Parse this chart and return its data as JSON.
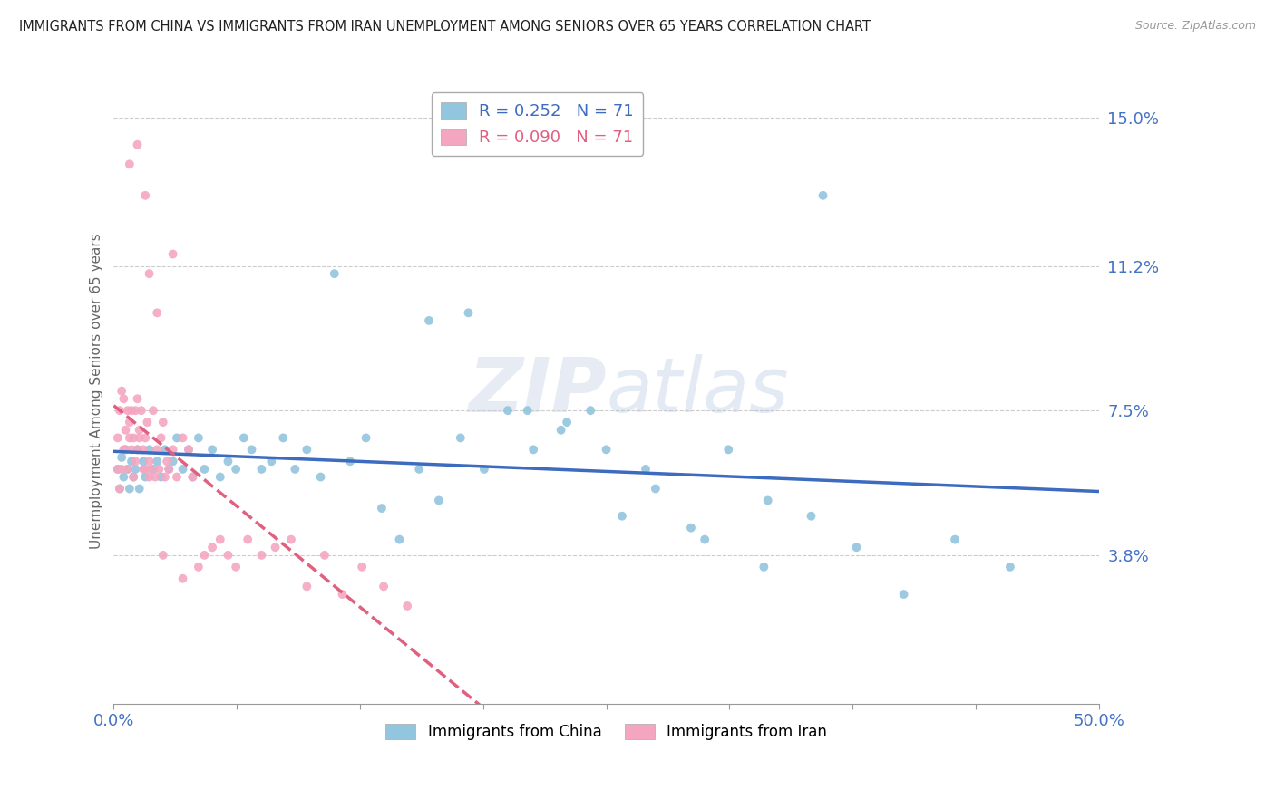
{
  "title": "IMMIGRANTS FROM CHINA VS IMMIGRANTS FROM IRAN UNEMPLOYMENT AMONG SENIORS OVER 65 YEARS CORRELATION CHART",
  "source": "Source: ZipAtlas.com",
  "ylabel": "Unemployment Among Seniors over 65 years",
  "xlim": [
    0,
    0.5
  ],
  "ylim": [
    0,
    0.16
  ],
  "yticks": [
    0.038,
    0.075,
    0.112,
    0.15
  ],
  "ytick_labels": [
    "3.8%",
    "7.5%",
    "11.2%",
    "15.0%"
  ],
  "xticks": [
    0.0,
    0.0625,
    0.125,
    0.1875,
    0.25,
    0.3125,
    0.375,
    0.4375,
    0.5
  ],
  "xtick_labels": [
    "0.0%",
    "",
    "",
    "",
    "",
    "",
    "",
    "",
    "50.0%"
  ],
  "legend_R_china": "R = 0.252",
  "legend_N_china": "N = 71",
  "legend_R_iran": "R = 0.090",
  "legend_N_iran": "N = 71",
  "color_china": "#92c5de",
  "color_iran": "#f4a6c0",
  "color_trendline_china": "#3c6bbf",
  "color_trendline_iran": "#e06080",
  "background_color": "#ffffff",
  "china_x": [
    0.002,
    0.003,
    0.004,
    0.005,
    0.006,
    0.007,
    0.008,
    0.009,
    0.01,
    0.011,
    0.012,
    0.013,
    0.015,
    0.016,
    0.018,
    0.02,
    0.022,
    0.024,
    0.026,
    0.028,
    0.03,
    0.032,
    0.035,
    0.038,
    0.04,
    0.043,
    0.046,
    0.05,
    0.054,
    0.058,
    0.062,
    0.066,
    0.07,
    0.075,
    0.08,
    0.086,
    0.092,
    0.098,
    0.105,
    0.112,
    0.12,
    0.128,
    0.136,
    0.145,
    0.155,
    0.165,
    0.176,
    0.188,
    0.2,
    0.213,
    0.227,
    0.242,
    0.258,
    0.275,
    0.293,
    0.312,
    0.332,
    0.354,
    0.377,
    0.401,
    0.427,
    0.455,
    0.16,
    0.18,
    0.21,
    0.23,
    0.25,
    0.27,
    0.3,
    0.33,
    0.36
  ],
  "china_y": [
    0.06,
    0.055,
    0.063,
    0.058,
    0.065,
    0.06,
    0.055,
    0.062,
    0.058,
    0.06,
    0.065,
    0.055,
    0.062,
    0.058,
    0.065,
    0.06,
    0.062,
    0.058,
    0.065,
    0.06,
    0.062,
    0.068,
    0.06,
    0.065,
    0.058,
    0.068,
    0.06,
    0.065,
    0.058,
    0.062,
    0.06,
    0.068,
    0.065,
    0.06,
    0.062,
    0.068,
    0.06,
    0.065,
    0.058,
    0.11,
    0.062,
    0.068,
    0.05,
    0.042,
    0.06,
    0.052,
    0.068,
    0.06,
    0.075,
    0.065,
    0.07,
    0.075,
    0.048,
    0.055,
    0.045,
    0.065,
    0.052,
    0.048,
    0.04,
    0.028,
    0.042,
    0.035,
    0.098,
    0.1,
    0.075,
    0.072,
    0.065,
    0.06,
    0.042,
    0.035,
    0.13
  ],
  "iran_x": [
    0.002,
    0.002,
    0.003,
    0.003,
    0.004,
    0.004,
    0.005,
    0.005,
    0.006,
    0.006,
    0.007,
    0.007,
    0.008,
    0.008,
    0.009,
    0.009,
    0.01,
    0.01,
    0.011,
    0.011,
    0.012,
    0.012,
    0.013,
    0.013,
    0.014,
    0.015,
    0.015,
    0.016,
    0.016,
    0.017,
    0.018,
    0.018,
    0.019,
    0.02,
    0.021,
    0.022,
    0.023,
    0.024,
    0.025,
    0.026,
    0.027,
    0.028,
    0.03,
    0.032,
    0.035,
    0.038,
    0.04,
    0.043,
    0.046,
    0.05,
    0.054,
    0.058,
    0.062,
    0.068,
    0.075,
    0.082,
    0.09,
    0.098,
    0.107,
    0.116,
    0.126,
    0.137,
    0.149,
    0.035,
    0.025,
    0.018,
    0.03,
    0.016,
    0.022,
    0.012,
    0.008
  ],
  "iran_y": [
    0.06,
    0.068,
    0.055,
    0.075,
    0.08,
    0.06,
    0.065,
    0.078,
    0.07,
    0.065,
    0.075,
    0.06,
    0.068,
    0.072,
    0.065,
    0.075,
    0.058,
    0.068,
    0.062,
    0.075,
    0.078,
    0.065,
    0.07,
    0.068,
    0.075,
    0.06,
    0.065,
    0.06,
    0.068,
    0.072,
    0.058,
    0.062,
    0.06,
    0.075,
    0.058,
    0.065,
    0.06,
    0.068,
    0.072,
    0.058,
    0.062,
    0.06,
    0.065,
    0.058,
    0.068,
    0.065,
    0.058,
    0.035,
    0.038,
    0.04,
    0.042,
    0.038,
    0.035,
    0.042,
    0.038,
    0.04,
    0.042,
    0.03,
    0.038,
    0.028,
    0.035,
    0.03,
    0.025,
    0.032,
    0.038,
    0.11,
    0.115,
    0.13,
    0.1,
    0.143,
    0.138
  ]
}
